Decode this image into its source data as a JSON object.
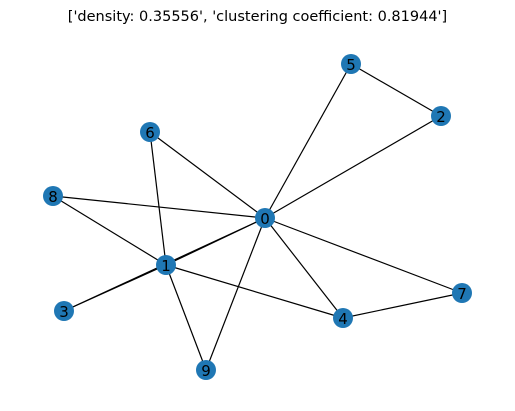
{
  "title": "['density: 0.35556', 'clustering coefficient: 0.81944']",
  "node_color": "#1f77b4",
  "edge_color": "#000000",
  "nodes": [
    "0",
    "1",
    "2",
    "3",
    "4",
    "5",
    "6",
    "7",
    "8",
    "9"
  ],
  "edges": [
    [
      "0",
      "1"
    ],
    [
      "0",
      "2"
    ],
    [
      "0",
      "3"
    ],
    [
      "0",
      "4"
    ],
    [
      "0",
      "5"
    ],
    [
      "0",
      "6"
    ],
    [
      "0",
      "7"
    ],
    [
      "0",
      "8"
    ],
    [
      "0",
      "9"
    ],
    [
      "1",
      "3"
    ],
    [
      "1",
      "4"
    ],
    [
      "1",
      "6"
    ],
    [
      "1",
      "8"
    ],
    [
      "1",
      "9"
    ],
    [
      "2",
      "5"
    ],
    [
      "4",
      "7"
    ]
  ]
}
